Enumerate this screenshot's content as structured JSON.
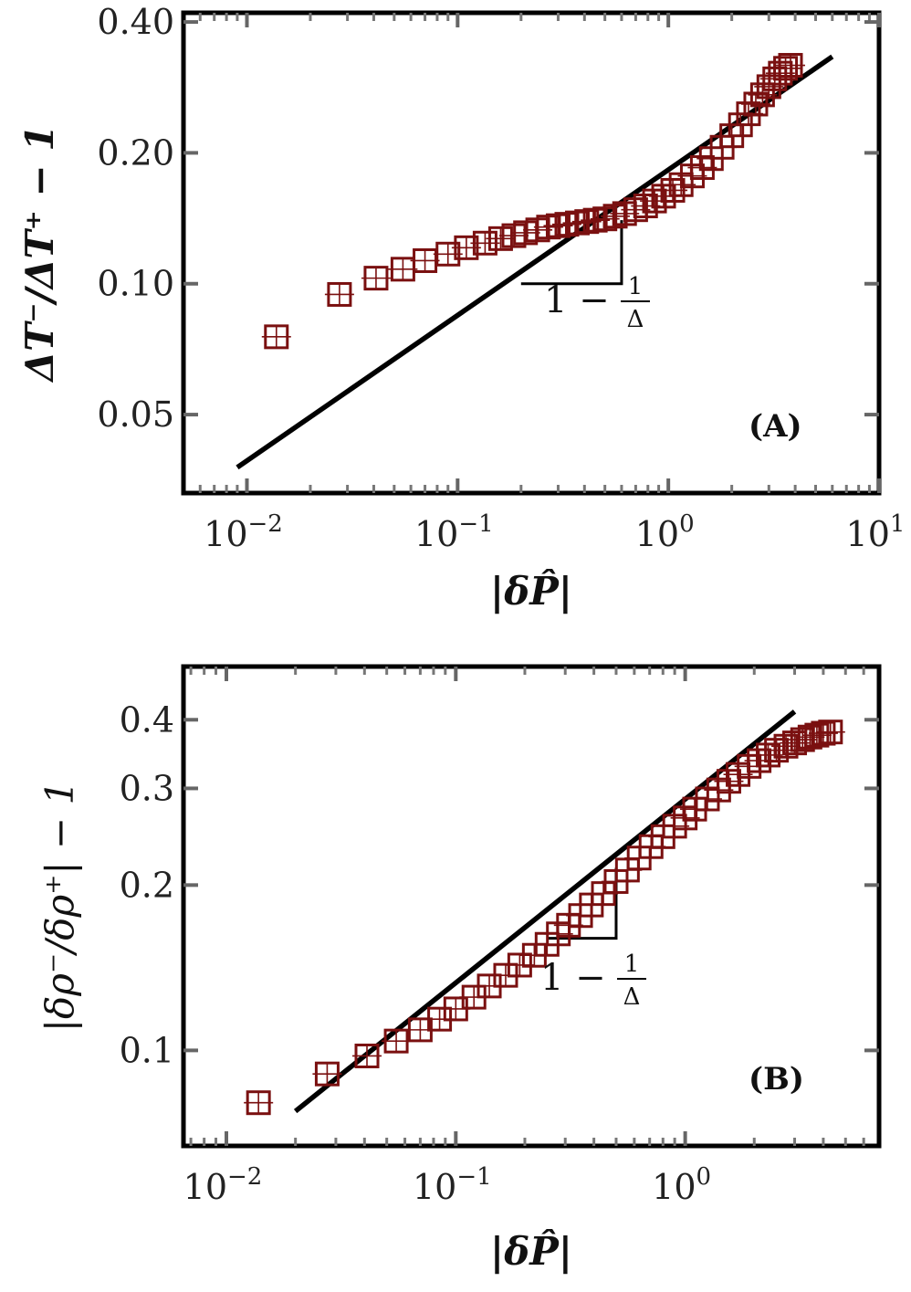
{
  "chart_data": [
    {
      "type": "scatter",
      "panel_label": "(A)",
      "xlabel": "|δP̂|",
      "ylabel": "ΔT⁻/ΔT⁺ − 1",
      "x_scale": "log",
      "y_scale": "log",
      "xlim": [
        0.005,
        10
      ],
      "ylim": [
        0.033,
        0.42
      ],
      "x_ticks": [
        {
          "value": 0.01,
          "base": "10",
          "exp": "−2"
        },
        {
          "value": 0.1,
          "base": "10",
          "exp": "−1"
        },
        {
          "value": 1,
          "base": "10",
          "exp": "0"
        },
        {
          "value": 10,
          "base": "10",
          "exp": "1"
        }
      ],
      "y_ticks": [
        {
          "value": 0.05,
          "label": "0.05"
        },
        {
          "value": 0.1,
          "label": "0.10"
        },
        {
          "value": 0.2,
          "label": "0.20"
        },
        {
          "value": 0.4,
          "label": "0.40"
        }
      ],
      "marker_color": "#7a1010",
      "series": [
        {
          "marker": "square",
          "x": [
            0.0138,
            0.0275,
            0.041,
            0.055,
            0.07,
            0.09,
            0.11,
            0.135,
            0.16,
            0.185,
            0.21,
            0.24,
            0.27,
            0.3,
            0.33,
            0.37,
            0.41,
            0.45,
            0.5,
            0.56,
            0.62,
            0.7,
            0.78,
            0.86,
            0.95,
            1.05,
            1.15,
            1.3,
            1.45,
            1.6,
            1.8,
            2.0,
            2.2,
            2.4,
            2.6,
            2.8,
            3.0,
            3.2,
            3.4,
            3.6,
            3.8
          ],
          "y": [
            0.0755,
            0.0945,
            0.103,
            0.108,
            0.113,
            0.117,
            0.121,
            0.124,
            0.127,
            0.129,
            0.131,
            0.133,
            0.135,
            0.136,
            0.137,
            0.138,
            0.139,
            0.14,
            0.141,
            0.143,
            0.145,
            0.148,
            0.151,
            0.155,
            0.159,
            0.164,
            0.169,
            0.177,
            0.185,
            0.194,
            0.206,
            0.219,
            0.232,
            0.246,
            0.259,
            0.272,
            0.284,
            0.296,
            0.305,
            0.313,
            0.318
          ]
        }
      ],
      "fit_line": {
        "x": [
          0.009,
          6.0
        ],
        "y": [
          0.0378,
          0.333
        ]
      },
      "slope_triangle": {
        "x1": 0.2,
        "x2": 0.6,
        "y1": 0.1,
        "y2": 0.14
      },
      "slope_label": {
        "prefix": "1 −",
        "num": "1",
        "den": "Δ"
      }
    },
    {
      "type": "scatter",
      "panel_label": "(B)",
      "xlabel": "|δP̂|",
      "ylabel": "|δρ⁻/δρ⁺| − 1",
      "x_scale": "log",
      "y_scale": "log",
      "xlim": [
        0.0065,
        7.0
      ],
      "ylim": [
        0.067,
        0.5
      ],
      "x_ticks": [
        {
          "value": 0.01,
          "base": "10",
          "exp": "−2"
        },
        {
          "value": 0.1,
          "base": "10",
          "exp": "−1"
        },
        {
          "value": 1,
          "base": "10",
          "exp": "0"
        }
      ],
      "y_ticks": [
        {
          "value": 0.1,
          "label": "0.1"
        },
        {
          "value": 0.2,
          "label": "0.2"
        },
        {
          "value": 0.3,
          "label": "0.3"
        },
        {
          "value": 0.4,
          "label": "0.4"
        }
      ],
      "marker_color": "#7a1010",
      "series": [
        {
          "marker": "square",
          "x": [
            0.0138,
            0.0275,
            0.041,
            0.055,
            0.07,
            0.085,
            0.1,
            0.12,
            0.14,
            0.165,
            0.19,
            0.22,
            0.25,
            0.28,
            0.31,
            0.35,
            0.39,
            0.44,
            0.5,
            0.56,
            0.63,
            0.71,
            0.8,
            0.9,
            1.0,
            1.1,
            1.25,
            1.4,
            1.55,
            1.7,
            1.9,
            2.1,
            2.3,
            2.5,
            2.75,
            3.0,
            3.25,
            3.5,
            3.75,
            4.0,
            4.3
          ],
          "y": [
            0.0803,
            0.0906,
            0.0977,
            0.104,
            0.109,
            0.114,
            0.119,
            0.125,
            0.131,
            0.137,
            0.143,
            0.149,
            0.156,
            0.163,
            0.169,
            0.176,
            0.184,
            0.193,
            0.203,
            0.213,
            0.224,
            0.235,
            0.245,
            0.256,
            0.265,
            0.275,
            0.287,
            0.298,
            0.309,
            0.318,
            0.329,
            0.337,
            0.345,
            0.352,
            0.358,
            0.363,
            0.368,
            0.372,
            0.375,
            0.378,
            0.38
          ]
        }
      ],
      "fit_line": {
        "x": [
          0.02,
          3.0
        ],
        "y": [
          0.0775,
          0.414
        ]
      },
      "slope_triangle": {
        "x1": 0.25,
        "x2": 0.5,
        "y1": 0.16,
        "y2": 0.215
      },
      "slope_label": {
        "prefix": "1 −",
        "num": "1",
        "den": "Δ"
      }
    }
  ]
}
